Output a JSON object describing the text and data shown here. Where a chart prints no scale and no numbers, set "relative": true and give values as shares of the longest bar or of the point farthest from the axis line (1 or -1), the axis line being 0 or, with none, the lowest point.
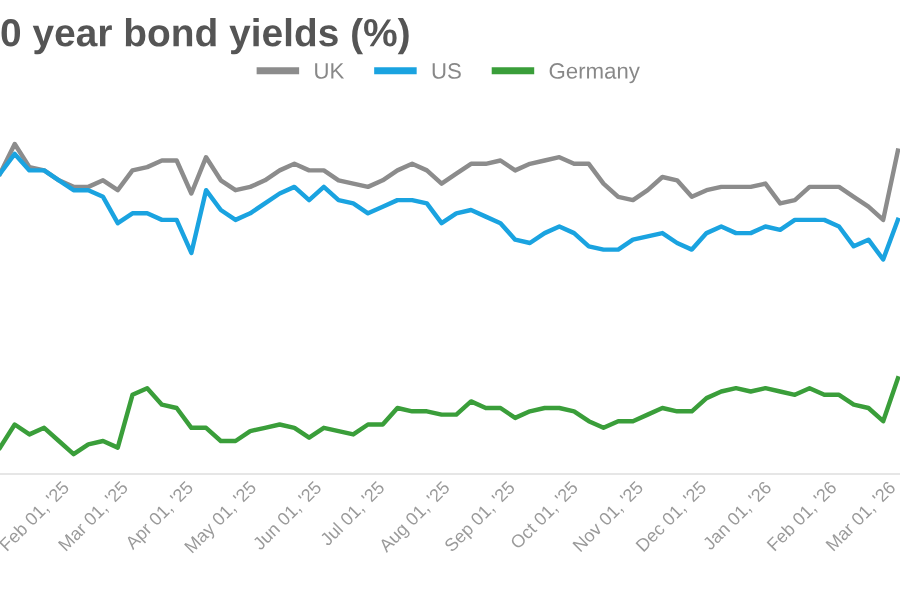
{
  "chart_data": {
    "type": "line",
    "title": "0 year bond yields (%)",
    "relative": true,
    "legend": "top",
    "x": [
      "2025-01-03",
      "2025-01-10",
      "2025-01-17",
      "2025-01-24",
      "2025-01-31",
      "2025-02-07",
      "2025-02-14",
      "2025-02-21",
      "2025-02-28",
      "2025-03-07",
      "2025-03-14",
      "2025-03-21",
      "2025-03-28",
      "2025-04-04",
      "2025-04-11",
      "2025-04-18",
      "2025-04-25",
      "2025-05-02",
      "2025-05-09",
      "2025-05-16",
      "2025-05-23",
      "2025-05-30",
      "2025-06-06",
      "2025-06-13",
      "2025-06-20",
      "2025-06-27",
      "2025-07-04",
      "2025-07-11",
      "2025-07-18",
      "2025-07-25",
      "2025-08-01",
      "2025-08-08",
      "2025-08-15",
      "2025-08-22",
      "2025-08-29",
      "2025-09-05",
      "2025-09-12",
      "2025-09-19",
      "2025-09-26",
      "2025-10-03",
      "2025-10-10",
      "2025-10-17",
      "2025-10-24",
      "2025-10-31",
      "2025-11-07",
      "2025-11-14",
      "2025-11-21",
      "2025-11-28",
      "2025-12-05",
      "2025-12-12",
      "2025-12-19",
      "2025-12-26",
      "2026-01-02",
      "2026-01-09",
      "2026-01-16",
      "2026-01-23",
      "2026-01-30",
      "2026-02-06",
      "2026-02-13",
      "2026-02-20",
      "2026-02-27",
      "2026-03-06"
    ],
    "xlim": [
      "2025-01-03",
      "2026-03-07"
    ],
    "xticks": [
      {
        "value": "2025-02-01",
        "label": "Feb 01, '25"
      },
      {
        "value": "2025-03-01",
        "label": "Mar 01, '25"
      },
      {
        "value": "2025-04-01",
        "label": "Apr 01, '25"
      },
      {
        "value": "2025-05-01",
        "label": "May 01, '25"
      },
      {
        "value": "2025-06-01",
        "label": "Jun 01, '25"
      },
      {
        "value": "2025-07-01",
        "label": "Jul 01, '25"
      },
      {
        "value": "2025-08-01",
        "label": "Aug 01, '25"
      },
      {
        "value": "2025-09-01",
        "label": "Sep 01, '25"
      },
      {
        "value": "2025-10-01",
        "label": "Oct 01, '25"
      },
      {
        "value": "2025-11-01",
        "label": "Nov 01, '25"
      },
      {
        "value": "2025-12-01",
        "label": "Dec 01, '25"
      },
      {
        "value": "2026-01-01",
        "label": "Jan 01, '26"
      },
      {
        "value": "2026-02-01",
        "label": "Feb 01, '26"
      },
      {
        "value": "2026-03-01",
        "label": "Mar 01, '26"
      }
    ],
    "series": [
      {
        "name": "UK",
        "color": "#8c8c8c",
        "values": [
          0.91,
          1.0,
          0.93,
          0.92,
          0.89,
          0.87,
          0.87,
          0.89,
          0.86,
          0.92,
          0.93,
          0.95,
          0.95,
          0.85,
          0.96,
          0.89,
          0.86,
          0.87,
          0.89,
          0.92,
          0.94,
          0.92,
          0.92,
          0.89,
          0.88,
          0.87,
          0.89,
          0.92,
          0.94,
          0.92,
          0.88,
          0.91,
          0.94,
          0.94,
          0.95,
          0.92,
          0.94,
          0.95,
          0.96,
          0.94,
          0.94,
          0.88,
          0.84,
          0.83,
          0.86,
          0.9,
          0.89,
          0.84,
          0.86,
          0.87,
          0.87,
          0.87,
          0.88,
          0.82,
          0.83,
          0.87,
          0.87,
          0.87,
          0.84,
          0.81,
          0.77,
          0.98
        ]
      },
      {
        "name": "US",
        "color": "#1aa3e0",
        "values": [
          0.91,
          0.97,
          0.92,
          0.92,
          0.89,
          0.86,
          0.86,
          0.84,
          0.76,
          0.79,
          0.79,
          0.77,
          0.77,
          0.67,
          0.86,
          0.8,
          0.77,
          0.79,
          0.82,
          0.85,
          0.87,
          0.83,
          0.87,
          0.83,
          0.82,
          0.79,
          0.81,
          0.83,
          0.83,
          0.82,
          0.76,
          0.79,
          0.8,
          0.78,
          0.76,
          0.71,
          0.7,
          0.73,
          0.75,
          0.73,
          0.69,
          0.68,
          0.68,
          0.71,
          0.72,
          0.73,
          0.7,
          0.68,
          0.73,
          0.75,
          0.73,
          0.73,
          0.75,
          0.74,
          0.77,
          0.77,
          0.77,
          0.75,
          0.69,
          0.71,
          0.65,
          0.77
        ]
      },
      {
        "name": "Germany",
        "color": "#3a9e3a",
        "values": [
          0.08,
          0.15,
          0.12,
          0.14,
          0.1,
          0.06,
          0.09,
          0.1,
          0.08,
          0.24,
          0.26,
          0.21,
          0.2,
          0.14,
          0.14,
          0.1,
          0.1,
          0.13,
          0.14,
          0.15,
          0.14,
          0.11,
          0.14,
          0.13,
          0.12,
          0.15,
          0.15,
          0.2,
          0.19,
          0.19,
          0.18,
          0.18,
          0.22,
          0.2,
          0.2,
          0.17,
          0.19,
          0.2,
          0.2,
          0.19,
          0.16,
          0.14,
          0.16,
          0.16,
          0.18,
          0.2,
          0.19,
          0.19,
          0.23,
          0.25,
          0.26,
          0.25,
          0.26,
          0.25,
          0.24,
          0.26,
          0.24,
          0.24,
          0.21,
          0.2,
          0.16,
          0.29
        ]
      }
    ]
  }
}
